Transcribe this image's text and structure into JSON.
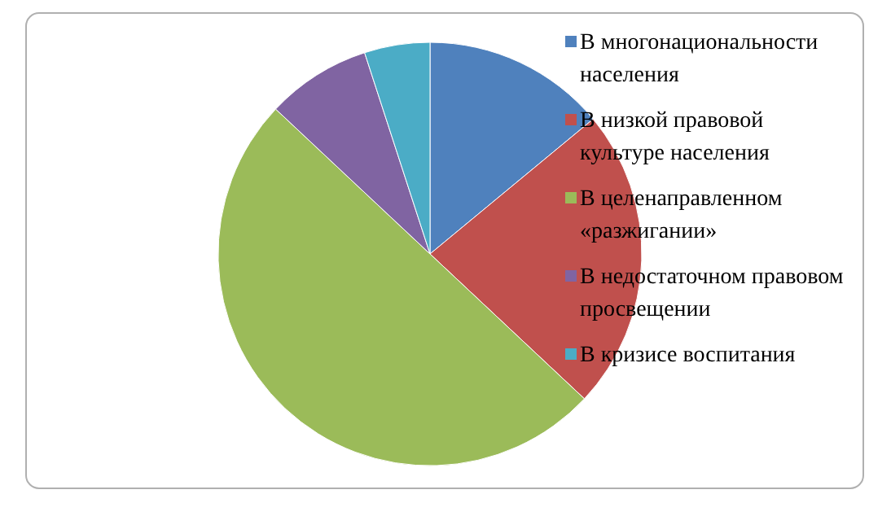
{
  "chart_data": {
    "type": "pie",
    "categories": [
      "В многонациональности населения",
      "В низкой правовой культуре населения",
      "В целенаправленном «разжигании»",
      "В недостаточном правовом просвещении",
      "В кризисе воспитания"
    ],
    "values": [
      14,
      23,
      50,
      8,
      5
    ],
    "colors": [
      "#4f81bd",
      "#c0504d",
      "#9bbb59",
      "#8064a2",
      "#4bacc6"
    ],
    "legend": "right"
  }
}
